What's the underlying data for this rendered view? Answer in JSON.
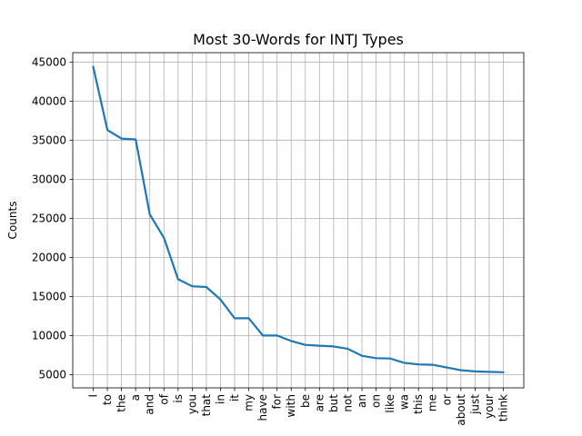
{
  "chart_data": {
    "type": "line",
    "title": "Most 30-Words for INTJ Types",
    "xlabel": "",
    "ylabel": "Counts",
    "categories": [
      "I",
      "to",
      "the",
      "a",
      "and",
      "of",
      "is",
      "you",
      "that",
      "in",
      "it",
      "my",
      "have",
      "for",
      "with",
      "be",
      "are",
      "but",
      "not",
      "an",
      "on",
      "like",
      "wa",
      "this",
      "me",
      "or",
      "about",
      "just",
      "your",
      "think"
    ],
    "values": [
      44400,
      36300,
      35200,
      35100,
      25500,
      22500,
      17200,
      16300,
      16200,
      14600,
      12200,
      12200,
      10000,
      10000,
      9300,
      8800,
      8700,
      8600,
      8300,
      7400,
      7100,
      7050,
      6500,
      6300,
      6250,
      5900,
      5550,
      5400,
      5350,
      5300
    ],
    "ylim": [
      3300,
      46200
    ],
    "yticks": [
      5000,
      10000,
      15000,
      20000,
      25000,
      30000,
      35000,
      40000,
      45000
    ],
    "grid": true,
    "line_color": "#1f77b4"
  }
}
